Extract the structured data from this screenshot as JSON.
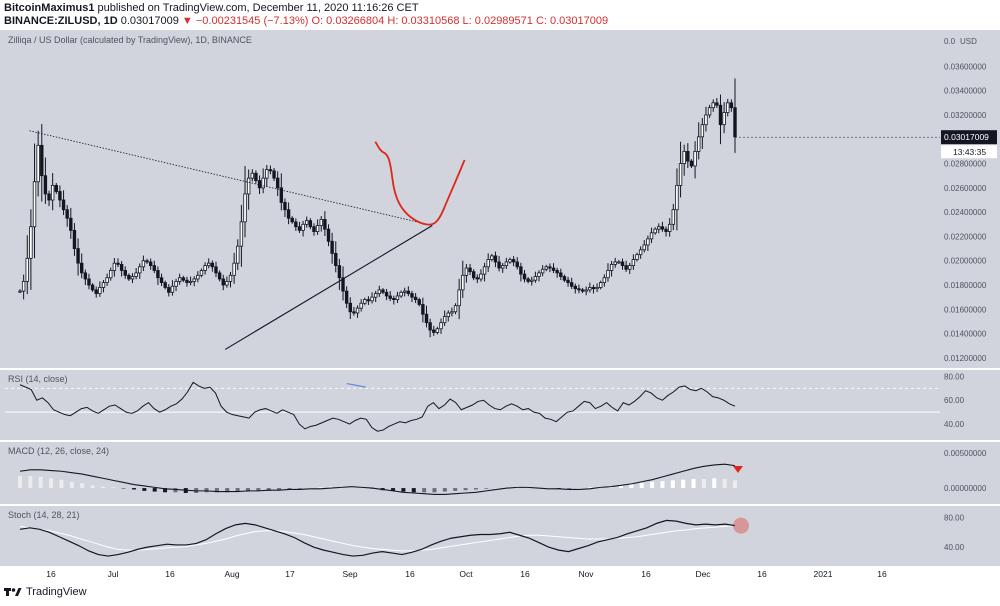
{
  "header": {
    "author": "BitcoinMaximus1",
    "published": "published on TradingView.com, December 11, 2020 11:16:26 CET",
    "symbol": "BINANCE:ZILUSD, 1D",
    "price": "0.03017009",
    "change_arrow": "▼",
    "change": "−0.00231545 (−7.13%)",
    "ohlc": "O: 0.03266804 H: 0.03310568 L: 0.02989571 C: 0.03017009"
  },
  "footer": {
    "brand": "TradingView",
    "logo_icon": "tradingview-logo-icon"
  },
  "colors": {
    "background": "#d1d4dc",
    "candle": "#131722",
    "forecast": "#e0251b",
    "divergence": "#5b8dd9",
    "stoch_signal": "#ffffff",
    "marker": "#e0251b"
  },
  "chart_data": [
    {
      "type": "candlestick",
      "title": "Zilliqa / US Dollar (calculated by TradingView), 1D, BINANCE",
      "currency_label": "USD",
      "y_ticks": [
        "0.03600000",
        "0.03400000",
        "0.03200000",
        "0.02800000",
        "0.02600000",
        "0.02400000",
        "0.02200000",
        "0.02000000",
        "0.01800000",
        "0.01600000",
        "0.01400000",
        "0.01200000"
      ],
      "top_tick_partial": "0.0",
      "ylim": [
        0.0115,
        0.0385
      ],
      "last_price_label": "0.03017009",
      "countdown_label": "13:43:35",
      "x_ticks": [
        "16",
        "Jul",
        "16",
        "Aug",
        "17",
        "Sep",
        "16",
        "Oct",
        "16",
        "Nov",
        "16",
        "Dec",
        "16",
        "2021",
        "16"
      ],
      "trendlines": [
        {
          "name": "descending resistance",
          "style": "dotted",
          "from": [
            "Jun 12",
            0.0307
          ],
          "to": [
            "Jan 10",
            0.0229
          ]
        },
        {
          "name": "ascending support",
          "style": "solid",
          "from": [
            "Sep 23",
            0.0127
          ],
          "to": [
            "Jan 10",
            0.0229
          ]
        }
      ],
      "forecast_path": [
        [
          "Dec 11",
          0.0298
        ],
        [
          "Dec 14",
          0.029
        ],
        [
          "Dec 17",
          0.0288
        ],
        [
          "Dec 19",
          0.028
        ],
        [
          "Dec 21",
          0.0255
        ],
        [
          "Dec 26",
          0.024
        ],
        [
          "Jan 03",
          0.0231
        ],
        [
          "Jan 10",
          0.0229
        ],
        [
          "Jan 14",
          0.0235
        ],
        [
          "Jan 18",
          0.025
        ],
        [
          "Jan 23",
          0.0268
        ],
        [
          "Jan 27",
          0.0283
        ]
      ],
      "price_series": [
        0.0175,
        0.0183,
        0.0202,
        0.0228,
        0.0265,
        0.0295,
        0.027,
        0.0255,
        0.025,
        0.0262,
        0.0257,
        0.025,
        0.0242,
        0.0235,
        0.0225,
        0.021,
        0.0198,
        0.019,
        0.0185,
        0.018,
        0.0176,
        0.0173,
        0.0178,
        0.0182,
        0.0186,
        0.0192,
        0.0198,
        0.0197,
        0.0192,
        0.0188,
        0.0185,
        0.0187,
        0.019,
        0.0195,
        0.02,
        0.0199,
        0.0196,
        0.0192,
        0.0186,
        0.0182,
        0.0178,
        0.0174,
        0.0179,
        0.0183,
        0.0186,
        0.0184,
        0.0182,
        0.0183,
        0.0185,
        0.0188,
        0.0192,
        0.0196,
        0.0198,
        0.0195,
        0.019,
        0.0185,
        0.018,
        0.0183,
        0.0188,
        0.0198,
        0.0212,
        0.0232,
        0.0255,
        0.0268,
        0.0272,
        0.0266,
        0.026,
        0.0268,
        0.0275,
        0.0274,
        0.0268,
        0.026,
        0.0248,
        0.0242,
        0.0235,
        0.0232,
        0.0228,
        0.0225,
        0.023,
        0.0233,
        0.0228,
        0.0224,
        0.0229,
        0.0234,
        0.0226,
        0.0216,
        0.0206,
        0.0196,
        0.0186,
        0.0175,
        0.0165,
        0.0158,
        0.0157,
        0.0161,
        0.0165,
        0.0168,
        0.0167,
        0.017,
        0.0173,
        0.0176,
        0.0174,
        0.0171,
        0.0169,
        0.0168,
        0.0171,
        0.0174,
        0.0175,
        0.0173,
        0.017,
        0.0168,
        0.0164,
        0.0156,
        0.0149,
        0.0143,
        0.0141,
        0.0144,
        0.0149,
        0.0154,
        0.0157,
        0.0158,
        0.0163,
        0.0176,
        0.0188,
        0.0194,
        0.0191,
        0.0186,
        0.0185,
        0.0189,
        0.0195,
        0.0201,
        0.0204,
        0.0199,
        0.0194,
        0.0196,
        0.0199,
        0.0201,
        0.0199,
        0.0195,
        0.0189,
        0.0185,
        0.0183,
        0.0184,
        0.0187,
        0.019,
        0.0193,
        0.0195,
        0.0194,
        0.0192,
        0.019,
        0.0187,
        0.0184,
        0.0182,
        0.0179,
        0.0177,
        0.0176,
        0.0175,
        0.0176,
        0.0178,
        0.0177,
        0.0178,
        0.0182,
        0.0186,
        0.0192,
        0.0197,
        0.0199,
        0.0199,
        0.0196,
        0.0193,
        0.0196,
        0.0201,
        0.0205,
        0.0209,
        0.0213,
        0.0218,
        0.0223,
        0.0226,
        0.0228,
        0.0226,
        0.0224,
        0.023,
        0.0242,
        0.0262,
        0.028,
        0.029,
        0.0282,
        0.0278,
        0.029,
        0.0302,
        0.0312,
        0.032,
        0.0326,
        0.033,
        0.0328,
        0.0312,
        0.0322,
        0.033,
        0.0326,
        0.0302
      ]
    },
    {
      "type": "line",
      "title": "RSI (14, close)",
      "y_ticks": [
        "80.00",
        "60.00",
        "40.00"
      ],
      "ylim": [
        30,
        82
      ],
      "bands": [
        70,
        50
      ],
      "series": [
        {
          "values": [
            73,
            71,
            69,
            60,
            62,
            58,
            52,
            50,
            48,
            47,
            50,
            53,
            54,
            51,
            49,
            52,
            55,
            56,
            53,
            50,
            49,
            51,
            55,
            58,
            53,
            50,
            52,
            55,
            57,
            61,
            67,
            75,
            72,
            70,
            71,
            66,
            55,
            50,
            48,
            47,
            46,
            45,
            50,
            52,
            53,
            51,
            49,
            52,
            50,
            48,
            40,
            36,
            38,
            39,
            41,
            43,
            45,
            44,
            42,
            40,
            43,
            45,
            44,
            37,
            34,
            35,
            38,
            40,
            42,
            41,
            43,
            44,
            46,
            55,
            58,
            53,
            56,
            61,
            58,
            52,
            54,
            56,
            59,
            60,
            56,
            53,
            52,
            55,
            57,
            55,
            52,
            53,
            50,
            49,
            45,
            44,
            42,
            46,
            50,
            51,
            55,
            59,
            58,
            53,
            55,
            58,
            54,
            51,
            58,
            56,
            59,
            63,
            68,
            66,
            62,
            60,
            64,
            67,
            71,
            72,
            69,
            68,
            70,
            67,
            63,
            62,
            60,
            57,
            55
          ]
        }
      ],
      "annotation": {
        "type": "bearish-divergence",
        "from": [
          "Nov 26",
          74
        ],
        "to": [
          "Dec 06",
          71
        ]
      }
    },
    {
      "type": "bar",
      "title": "MACD (12, 26, close, 24)",
      "y_ticks": [
        "0.00500000",
        "0.00000000"
      ],
      "ylim": [
        -0.0017,
        0.006
      ],
      "series": [
        {
          "kind": "macd",
          "values": [
            0.0024,
            0.0026,
            0.0026,
            0.0025,
            0.0024,
            0.0022,
            0.002,
            0.0017,
            0.0014,
            0.0011,
            0.0008,
            0.0005,
            0.0003,
            0.0001,
            -0.0001,
            -0.0002,
            -0.0003,
            -0.0004,
            -0.0004,
            -0.0005,
            -0.0005,
            -0.0005,
            -0.0004,
            -0.0004,
            -0.0003,
            -0.0003,
            -0.0002,
            -0.0002,
            -0.0001,
            -0.0001,
            0.0,
            0.0001,
            0.0002,
            0.0001,
            0.0,
            -0.0002,
            -0.0004,
            -0.0006,
            -0.0007,
            -0.0008,
            -0.0009,
            -0.0009,
            -0.0008,
            -0.0007,
            -0.0006,
            -0.0004,
            -0.0002,
            0.0,
            0.0001,
            0.0001,
            0.0,
            -0.0001,
            -0.0001,
            -0.0002,
            -0.0002,
            -0.0001,
            0.0001,
            0.0002,
            0.0004,
            0.0006,
            0.0009,
            0.0012,
            0.0016,
            0.002,
            0.0024,
            0.0028,
            0.0031,
            0.0033,
            0.0034,
            0.0032
          ]
        },
        {
          "kind": "histogram",
          "values": [
            0.0017,
            0.0017,
            0.0016,
            0.0014,
            0.0012,
            0.0009,
            0.0007,
            0.0004,
            0.0002,
            0.0001,
            -0.0001,
            -0.0002,
            -0.0004,
            -0.0005,
            -0.0006,
            -0.0006,
            -0.0007,
            -0.0007,
            -0.0006,
            -0.0006,
            -0.0006,
            -0.0005,
            -0.0005,
            -0.0004,
            -0.0004,
            -0.0003,
            -0.0002,
            -0.0001,
            0.0,
            0.0001,
            0.0002,
            0.0002,
            0.0002,
            0.0001,
            -0.0001,
            -0.0003,
            -0.0004,
            -0.0005,
            -0.0006,
            -0.0006,
            -0.0006,
            -0.0005,
            -0.0004,
            -0.0003,
            -0.0002,
            -0.0001,
            0.0,
            0.0001,
            0.0002,
            0.0002,
            0.0001,
            0.0,
            -0.0001,
            -0.0001,
            0.0,
            0.0001,
            0.0002,
            0.0003,
            0.0005,
            0.0006,
            0.0007,
            0.0009,
            0.001,
            0.0011,
            0.0012,
            0.0013,
            0.0013,
            0.0014,
            0.0013,
            0.0011
          ]
        }
      ]
    },
    {
      "type": "line",
      "title": "Stoch (14, 28, 21)",
      "y_ticks": [
        "80.00",
        "40.00"
      ],
      "ylim": [
        20,
        90
      ],
      "series": [
        {
          "kind": "%K",
          "values": [
            64,
            66,
            64,
            60,
            54,
            48,
            42,
            35,
            30,
            28,
            30,
            33,
            37,
            40,
            42,
            44,
            43,
            43,
            45,
            50,
            58,
            65,
            70,
            72,
            70,
            66,
            62,
            58,
            53,
            46,
            40,
            36,
            33,
            30,
            28,
            29,
            32,
            34,
            32,
            30,
            33,
            37,
            43,
            48,
            52,
            54,
            56,
            57,
            57,
            58,
            60,
            56,
            52,
            46,
            40,
            36,
            34,
            38,
            42,
            47,
            50,
            53,
            58,
            62,
            66,
            72,
            76,
            75,
            72,
            70,
            71,
            70,
            71,
            69
          ]
        },
        {
          "kind": "%D",
          "values": [
            68,
            66,
            64,
            62,
            59,
            56,
            52,
            48,
            44,
            40,
            37,
            36,
            36,
            37,
            38,
            39,
            40,
            41,
            43,
            45,
            48,
            51,
            55,
            58,
            61,
            62,
            62,
            61,
            59,
            57,
            54,
            51,
            48,
            45,
            42,
            40,
            38,
            37,
            36,
            35,
            35,
            36,
            37,
            39,
            41,
            43,
            45,
            47,
            49,
            51,
            53,
            55,
            56,
            56,
            55,
            54,
            53,
            52,
            51,
            51,
            51,
            52,
            53,
            54,
            56,
            58,
            60,
            62,
            63,
            65,
            66,
            67,
            68,
            69
          ]
        }
      ]
    }
  ]
}
